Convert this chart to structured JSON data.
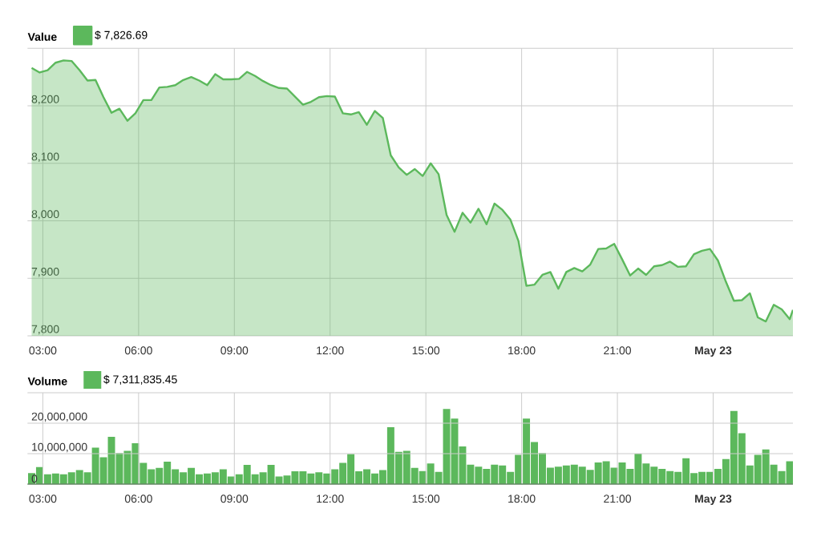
{
  "chart_data": [
    {
      "type": "area",
      "title": "Value",
      "x": [
        2.65,
        2.9,
        3.15,
        3.4,
        3.65,
        3.9,
        4.15,
        4.4,
        4.65,
        4.9,
        5.15,
        5.4,
        5.65,
        5.9,
        6.15,
        6.4,
        6.65,
        6.9,
        7.15,
        7.4,
        7.65,
        7.9,
        8.15,
        8.4,
        8.65,
        8.9,
        9.15,
        9.4,
        9.65,
        9.9,
        10.15,
        10.4,
        10.65,
        10.9,
        11.15,
        11.4,
        11.65,
        11.9,
        12.15,
        12.4,
        12.65,
        12.9,
        13.15,
        13.4,
        13.65,
        13.9,
        14.15,
        14.4,
        14.65,
        14.9,
        15.15,
        15.4,
        15.65,
        15.9,
        16.15,
        16.4,
        16.65,
        16.9,
        17.15,
        17.4,
        17.65,
        17.9,
        18.15,
        18.4,
        18.65,
        18.9,
        19.15,
        19.4,
        19.65,
        19.9,
        20.15,
        20.4,
        20.65,
        20.9,
        21.15,
        21.4,
        21.65,
        21.9,
        22.15,
        22.4,
        22.65,
        22.9,
        23.15,
        23.4,
        23.65,
        23.9,
        24.15,
        24.4,
        24.65,
        24.9,
        25.15,
        25.4,
        25.65,
        25.9,
        26.15,
        26.4,
        26.5
      ],
      "series": [
        {
          "name": "$ 7,826.69",
          "color": "#5cb85c",
          "values": [
            8266,
            8258,
            8262,
            8275,
            8279,
            8278,
            8262,
            8244,
            8245,
            8215,
            8188,
            8195,
            8174,
            8187,
            8210,
            8210,
            8232,
            8233,
            8236,
            8245,
            8250,
            8244,
            8236,
            8255,
            8246,
            8246,
            8247,
            8259,
            8252,
            8243,
            8236,
            8231,
            8230,
            8216,
            8202,
            8207,
            8215,
            8217,
            8216,
            8187,
            8185,
            8189,
            8167,
            8191,
            8179,
            8114,
            8093,
            8080,
            8090,
            8078,
            8100,
            8081,
            8010,
            7981,
            8014,
            7997,
            8021,
            7994,
            8030,
            8019,
            8002,
            7965,
            7887,
            7889,
            7906,
            7911,
            7882,
            7911,
            7918,
            7912,
            7924,
            7951,
            7952,
            7960,
            7933,
            7905,
            7917,
            7906,
            7921,
            7923,
            7929,
            7920,
            7921,
            7942,
            7948,
            7951,
            7931,
            7894,
            7861,
            7862,
            7874,
            7832,
            7825,
            7854,
            7846,
            7829,
            7845
          ]
        }
      ],
      "xlim": [
        2.52,
        26.5
      ],
      "xticks": [
        {
          "value": 3,
          "label": "03:00"
        },
        {
          "value": 6,
          "label": "06:00"
        },
        {
          "value": 9,
          "label": "09:00"
        },
        {
          "value": 12,
          "label": "12:00"
        },
        {
          "value": 15,
          "label": "15:00"
        },
        {
          "value": 18,
          "label": "18:00"
        },
        {
          "value": 21,
          "label": "21:00"
        },
        {
          "value": 24,
          "label": "May 23"
        }
      ],
      "ylim": [
        7800,
        8300
      ],
      "yticks": [
        {
          "value": 7800,
          "label": "7,800"
        },
        {
          "value": 7900,
          "label": "7,900"
        },
        {
          "value": 8000,
          "label": "8,000"
        },
        {
          "value": 8100,
          "label": "8,100"
        },
        {
          "value": 8200,
          "label": "8,200"
        },
        {
          "value": 8300,
          "label": null
        }
      ],
      "grid": true,
      "legend": "top left"
    },
    {
      "type": "bar",
      "title": "Volume",
      "x": [
        2.65,
        2.9,
        3.15,
        3.4,
        3.65,
        3.9,
        4.15,
        4.4,
        4.65,
        4.9,
        5.15,
        5.4,
        5.65,
        5.9,
        6.15,
        6.4,
        6.65,
        6.9,
        7.15,
        7.4,
        7.65,
        7.9,
        8.15,
        8.4,
        8.65,
        8.9,
        9.15,
        9.4,
        9.65,
        9.9,
        10.15,
        10.4,
        10.65,
        10.9,
        11.15,
        11.4,
        11.65,
        11.9,
        12.15,
        12.4,
        12.65,
        12.9,
        13.15,
        13.4,
        13.65,
        13.9,
        14.15,
        14.4,
        14.65,
        14.9,
        15.15,
        15.4,
        15.65,
        15.9,
        16.15,
        16.4,
        16.65,
        16.9,
        17.15,
        17.4,
        17.65,
        17.9,
        18.15,
        18.4,
        18.65,
        18.9,
        19.15,
        19.4,
        19.65,
        19.9,
        20.15,
        20.4,
        20.65,
        20.9,
        21.15,
        21.4,
        21.65,
        21.9,
        22.15,
        22.4,
        22.65,
        22.9,
        23.15,
        23.4,
        23.65,
        23.9,
        24.15,
        24.4,
        24.65,
        24.9,
        25.15,
        25.4,
        25.65,
        25.9,
        26.15,
        26.4
      ],
      "series": [
        {
          "name": "$ 7,311,835.45",
          "color": "#5cb85c",
          "values": [
            3600000,
            5600000,
            3200000,
            3500000,
            3200000,
            3900000,
            4600000,
            3900000,
            12000000,
            8800000,
            15500000,
            10200000,
            10900000,
            13400000,
            7000000,
            4900000,
            5300000,
            7400000,
            4900000,
            3900000,
            5300000,
            3200000,
            3500000,
            3900000,
            4900000,
            2500000,
            3200000,
            6300000,
            3200000,
            3900000,
            6300000,
            2500000,
            2800000,
            4200000,
            4200000,
            3500000,
            3900000,
            3500000,
            4900000,
            7000000,
            9900000,
            4200000,
            4900000,
            3500000,
            4600000,
            18700000,
            10600000,
            10900000,
            5300000,
            4300000,
            6800000,
            4000000,
            24700000,
            21500000,
            12400000,
            6400000,
            5700000,
            5000000,
            6400000,
            6100000,
            4000000,
            9600000,
            21500000,
            13800000,
            10200000,
            5400000,
            5700000,
            6100000,
            6400000,
            5700000,
            4700000,
            7100000,
            7500000,
            5400000,
            7100000,
            5000000,
            10000000,
            6800000,
            5700000,
            5000000,
            4300000,
            4000000,
            8500000,
            3600000,
            4000000,
            4000000,
            5000000,
            8200000,
            24000000,
            16700000,
            6100000,
            9600000,
            11400000,
            6400000,
            4300000,
            7500000
          ]
        }
      ],
      "xlim": [
        2.52,
        26.5
      ],
      "xticks": [
        {
          "value": 3,
          "label": "03:00"
        },
        {
          "value": 6,
          "label": "06:00"
        },
        {
          "value": 9,
          "label": "09:00"
        },
        {
          "value": 12,
          "label": "12:00"
        },
        {
          "value": 15,
          "label": "15:00"
        },
        {
          "value": 18,
          "label": "18:00"
        },
        {
          "value": 21,
          "label": "21:00"
        },
        {
          "value": 24,
          "label": "May 23"
        }
      ],
      "ylim": [
        0,
        30000000
      ],
      "yticks": [
        0,
        {
          "value": 10000000,
          "label": "10,000,000"
        },
        {
          "value": 20000000,
          "label": "20,000,000"
        },
        {
          "value": 30000000,
          "label": null
        }
      ],
      "grid": true,
      "legend": "top left"
    }
  ]
}
